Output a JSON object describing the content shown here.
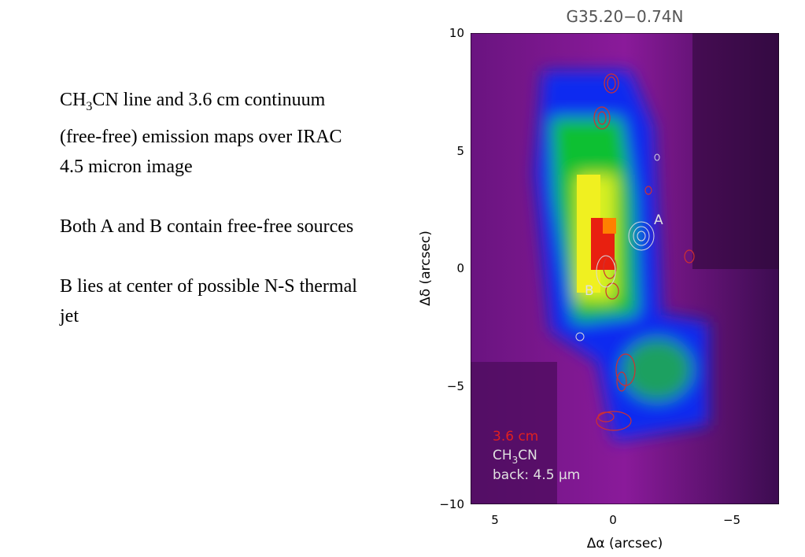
{
  "slide": {
    "paragraphs": [
      {
        "pre": "CH",
        "sub": "3",
        "post": "CN line and 3.6 cm continuum (free-free) emission maps over IRAC 4.5 micron image"
      },
      {
        "text": "Both A and B contain free-free sources"
      },
      {
        "text": "B lies at center of possible N-S thermal jet"
      }
    ],
    "figure": {
      "title": "G35.20−0.74N",
      "x_label": "Δα (arcsec)",
      "y_label": "Δδ (arcsec)",
      "xticks": [
        "5",
        "0",
        "−5"
      ],
      "yticks": [
        "10",
        "5",
        "0",
        "−5",
        "−10"
      ],
      "source_labels": [
        "A",
        "B"
      ],
      "legend": {
        "continuum": "3.6 cm",
        "line_pre": "CH",
        "line_sub": "3",
        "line_post": "CN",
        "back": "back: 4.5 μm"
      }
    }
  }
}
